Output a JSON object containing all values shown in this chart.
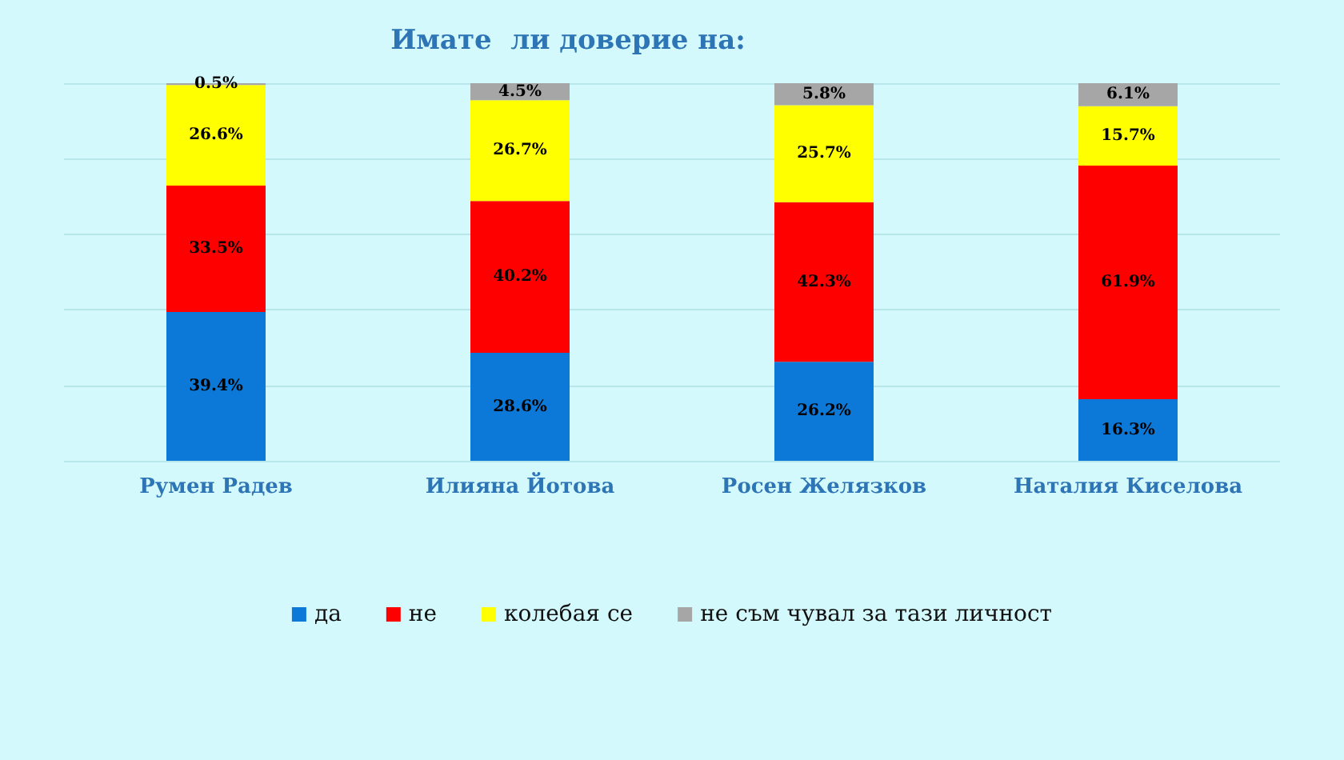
{
  "chart_data": {
    "type": "bar",
    "title": "Имате  ли доверие на:",
    "stacked": true,
    "categories": [
      "Румен Радев",
      "Илияна Йотова",
      "Росен Желязков",
      "Наталия Киселова"
    ],
    "series": [
      {
        "name": "да",
        "color": "#0c78d8",
        "values": [
          39.4,
          28.6,
          26.2,
          16.3
        ],
        "value_labels": [
          "39.4%",
          "28.6%",
          "26.2%",
          "16.3%"
        ]
      },
      {
        "name": "не",
        "color": "#ff0000",
        "values": [
          33.5,
          40.2,
          42.3,
          61.9
        ],
        "value_labels": [
          "33.5%",
          "40.2%",
          "42.3%",
          "61.9%"
        ]
      },
      {
        "name": "колебая се",
        "color": "#ffff00",
        "values": [
          26.6,
          26.7,
          25.7,
          15.7
        ],
        "value_labels": [
          "26.6%",
          "26.7%",
          "25.7%",
          "15.7%"
        ]
      },
      {
        "name": "не съм чувал за тази личност",
        "color": "#a6a6a6",
        "values": [
          0.5,
          4.5,
          5.8,
          6.1
        ],
        "value_labels": [
          "0.5%",
          "4.5%",
          "5.8%",
          "6.1%"
        ]
      }
    ],
    "ylim": [
      0,
      100
    ],
    "yticks": [
      {
        "value": 0,
        "label": null
      },
      {
        "value": 20,
        "label": null
      },
      {
        "value": 40,
        "label": null
      },
      {
        "value": 60,
        "label": null
      },
      {
        "value": 80,
        "label": null
      },
      {
        "value": 100,
        "label": null
      }
    ],
    "grid": "y",
    "tick_labels": "x",
    "legend": "bottom"
  }
}
